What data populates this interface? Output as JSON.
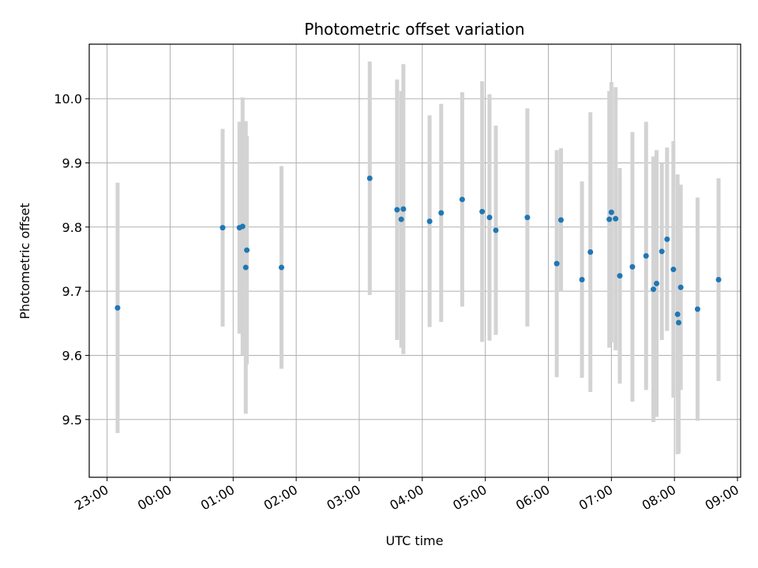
{
  "chart_data": {
    "type": "scatter",
    "title": "Photometric offset variation",
    "xlabel": "UTC time",
    "ylabel": "Photometric offset",
    "x_unit": "UTC time (HH:MM)",
    "xlim": [
      "22:43",
      "09:03"
    ],
    "ylim": [
      9.41,
      10.085
    ],
    "grid": true,
    "x_ticks": [
      "23:00",
      "00:00",
      "01:00",
      "02:00",
      "03:00",
      "04:00",
      "05:00",
      "06:00",
      "07:00",
      "08:00",
      "09:00"
    ],
    "y_ticks": [
      9.5,
      9.6,
      9.7,
      9.8,
      9.9,
      10.0
    ],
    "y_tick_labels": [
      "9.5",
      "9.6",
      "9.7",
      "9.8",
      "9.9",
      "10.0"
    ],
    "point_color": "#1f77b4",
    "errorbar_color": "#d3d3d3",
    "points": [
      {
        "x": "23:10",
        "y": 9.674,
        "err": 0.195
      },
      {
        "x": "00:50",
        "y": 9.799,
        "err": 0.154
      },
      {
        "x": "01:06",
        "y": 9.799,
        "err": 0.165
      },
      {
        "x": "01:09",
        "y": 9.801,
        "err": 0.201
      },
      {
        "x": "01:12",
        "y": 9.737,
        "err": 0.228
      },
      {
        "x": "01:13",
        "y": 9.764,
        "err": 0.178
      },
      {
        "x": "01:46",
        "y": 9.737,
        "err": 0.158
      },
      {
        "x": "03:10",
        "y": 9.876,
        "err": 0.182
      },
      {
        "x": "03:36",
        "y": 9.827,
        "err": 0.203
      },
      {
        "x": "03:40",
        "y": 9.812,
        "err": 0.2
      },
      {
        "x": "03:42",
        "y": 9.828,
        "err": 0.226
      },
      {
        "x": "04:07",
        "y": 9.809,
        "err": 0.165
      },
      {
        "x": "04:18",
        "y": 9.822,
        "err": 0.17
      },
      {
        "x": "04:38",
        "y": 9.843,
        "err": 0.167
      },
      {
        "x": "04:57",
        "y": 9.824,
        "err": 0.203
      },
      {
        "x": "05:04",
        "y": 9.815,
        "err": 0.192
      },
      {
        "x": "05:10",
        "y": 9.795,
        "err": 0.163
      },
      {
        "x": "05:40",
        "y": 9.815,
        "err": 0.17
      },
      {
        "x": "06:08",
        "y": 9.743,
        "err": 0.177
      },
      {
        "x": "06:12",
        "y": 9.811,
        "err": 0.112
      },
      {
        "x": "06:32",
        "y": 9.718,
        "err": 0.153
      },
      {
        "x": "06:40",
        "y": 9.761,
        "err": 0.218
      },
      {
        "x": "06:58",
        "y": 9.812,
        "err": 0.2
      },
      {
        "x": "07:00",
        "y": 9.823,
        "err": 0.203
      },
      {
        "x": "07:04",
        "y": 9.813,
        "err": 0.205
      },
      {
        "x": "07:08",
        "y": 9.724,
        "err": 0.168
      },
      {
        "x": "07:20",
        "y": 9.738,
        "err": 0.21
      },
      {
        "x": "07:33",
        "y": 9.755,
        "err": 0.209
      },
      {
        "x": "07:40",
        "y": 9.703,
        "err": 0.207
      },
      {
        "x": "07:43",
        "y": 9.712,
        "err": 0.208
      },
      {
        "x": "07:48",
        "y": 9.762,
        "err": 0.138
      },
      {
        "x": "07:53",
        "y": 9.781,
        "err": 0.143
      },
      {
        "x": "07:59",
        "y": 9.734,
        "err": 0.2
      },
      {
        "x": "08:03",
        "y": 9.664,
        "err": 0.218
      },
      {
        "x": "08:04",
        "y": 9.651,
        "err": 0.204
      },
      {
        "x": "08:06",
        "y": 9.706,
        "err": 0.16
      },
      {
        "x": "08:22",
        "y": 9.672,
        "err": 0.174
      },
      {
        "x": "08:42",
        "y": 9.718,
        "err": 0.158
      }
    ]
  }
}
